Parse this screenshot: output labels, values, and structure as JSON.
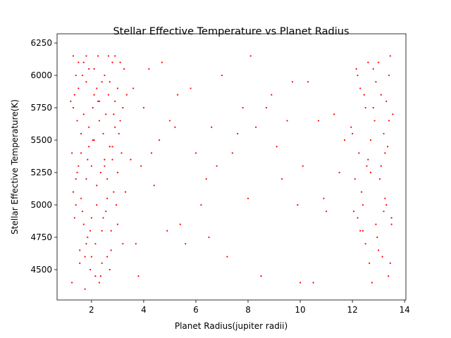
{
  "chart_data": {
    "type": "scatter",
    "title": "Stellar Effective Temperature vs Planet Radius",
    "x_label": "Planet Radius(jupiter radii)",
    "y_label": "Stellar Effective Temperature(K)",
    "xlim": [
      0.68,
      14.05
    ],
    "ylim": [
      4266,
      6321
    ],
    "xticks": [
      2,
      4,
      6,
      8,
      10,
      12,
      14
    ],
    "yticks": [
      4500,
      4750,
      5000,
      5250,
      5500,
      5750,
      6000,
      6250
    ],
    "grid": false,
    "series": [
      {
        "color": "#ff0000",
        "x": [
          1.3,
          1.5,
          1.7,
          1.9,
          2.1,
          2.3,
          2.5,
          2.7,
          2.9,
          3.1,
          1.4,
          1.6,
          1.8,
          2.0,
          2.2,
          2.4,
          2.6,
          2.8,
          3.0,
          3.2,
          1.25,
          1.55,
          1.75,
          1.95,
          2.15,
          2.35,
          2.55,
          2.75,
          2.95,
          3.15,
          1.35,
          1.45,
          1.65,
          1.85,
          2.05,
          2.25,
          2.45,
          2.65,
          2.85,
          3.05,
          1.3,
          1.6,
          1.9,
          2.2,
          2.5,
          2.8,
          1.4,
          1.7,
          2.0,
          2.3,
          2.6,
          2.9,
          1.5,
          1.8,
          2.1,
          2.4,
          2.7,
          3.0,
          1.2,
          1.35,
          1.55,
          1.85,
          2.15,
          2.45,
          2.75,
          3.3,
          3.2,
          1.45,
          2.0,
          2.5,
          1.6,
          2.2,
          2.8,
          1.3,
          1.9,
          2.4,
          2.6,
          1.7,
          2.1,
          2.3,
          1.4,
          1.8,
          2.7,
          3.1,
          2.9,
          2.55,
          2.05,
          1.65,
          1.25,
          1.95,
          2.35,
          2.85,
          3.25,
          1.5,
          1.75,
          2.25,
          2.65,
          3.35,
          3.0,
          1.8,
          3.6,
          3.9,
          4.2,
          4.6,
          5.0,
          5.4,
          5.8,
          6.2,
          6.6,
          7.0,
          7.4,
          7.8,
          8.1,
          8.5,
          8.9,
          9.3,
          9.7,
          10.1,
          10.5,
          10.9,
          11.3,
          11.7,
          3.8,
          4.4,
          4.9,
          5.6,
          6.4,
          7.2,
          8.3,
          9.1,
          10.3,
          11.0,
          3.5,
          4.0,
          5.2,
          6.0,
          6.8,
          7.6,
          8.7,
          9.9,
          10.7,
          11.5,
          4.7,
          5.3,
          6.5,
          8.0,
          9.5,
          10.0,
          3.7,
          4.3,
          12.0,
          12.2,
          12.4,
          12.6,
          12.8,
          13.0,
          13.2,
          13.4,
          13.5,
          12.1,
          12.3,
          12.5,
          12.7,
          12.9,
          13.1,
          13.3,
          13.45,
          12.05,
          12.35,
          12.65,
          12.85,
          13.15,
          13.35,
          12.15,
          12.45,
          12.75,
          13.05,
          13.25,
          13.55,
          12.55,
          12.95,
          13.38,
          12.25,
          12.6,
          12.9,
          13.2,
          13.5,
          12.4,
          12.7,
          13.1,
          12.2,
          12.8,
          13.3,
          13.45,
          11.95,
          12.5,
          13.0,
          13.4,
          12.3,
          13.25
        ],
        "values": [
          6150,
          5900,
          5700,
          6050,
          5500,
          5800,
          5300,
          5950,
          5600,
          6100,
          5200,
          5050,
          4700,
          4900,
          5150,
          4800,
          4600,
          5450,
          5250,
          5750,
          4400,
          4550,
          4350,
          4500,
          4700,
          4450,
          4950,
          4650,
          5000,
          5400,
          5850,
          5650,
          6000,
          5350,
          5750,
          6150,
          5550,
          5850,
          5700,
          5550,
          5100,
          5400,
          5600,
          5900,
          6000,
          6100,
          5000,
          4850,
          5300,
          5650,
          5200,
          5800,
          6100,
          6150,
          6050,
          5950,
          5450,
          5900,
          5800,
          4900,
          4650,
          4750,
          4450,
          4900,
          4800,
          5100,
          4700,
          5250,
          4600,
          5350,
          5550,
          5000,
          5350,
          5750,
          5450,
          4550,
          5050,
          6100,
          5850,
          4400,
          6000,
          5200,
          4500,
          5650,
          6150,
          5700,
          5500,
          4950,
          5400,
          4800,
          5250,
          5100,
          6050,
          5300,
          4600,
          5800,
          6150,
          5850,
          4850,
          5950,
          5900,
          5300,
          6050,
          5500,
          5650,
          4850,
          5900,
          5000,
          5600,
          6000,
          5400,
          5750,
          6150,
          4450,
          5850,
          5200,
          5950,
          5300,
          4400,
          5050,
          5700,
          5500,
          4450,
          5150,
          4800,
          4700,
          5200,
          4600,
          5600,
          5450,
          5950,
          4950,
          5350,
          5750,
          5600,
          5400,
          5300,
          5550,
          5750,
          5000,
          5650,
          5250,
          6100,
          5850,
          4750,
          5050,
          5650,
          4400,
          4700,
          5400,
          5550,
          6000,
          4800,
          5350,
          5750,
          6100,
          4950,
          5650,
          4900,
          5200,
          5900,
          4700,
          5500,
          4850,
          5300,
          5800,
          6150,
          4950,
          5100,
          4550,
          5650,
          4600,
          5450,
          6050,
          5850,
          4400,
          5200,
          5050,
          5700,
          5300,
          4750,
          4450,
          5400,
          6100,
          5950,
          5550,
          4850,
          5000,
          5250,
          5850,
          4900,
          6050,
          5000,
          4550,
          5600,
          5750,
          4650,
          6000,
          4800,
          5400
        ]
      }
    ]
  }
}
